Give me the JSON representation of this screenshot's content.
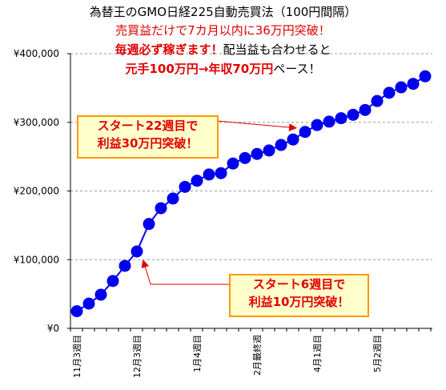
{
  "titles": {
    "line1": "為替王のGMO日経225自動売買法（100円間隔）",
    "line2": "売買益だけで7カ月以内に36万円突破！",
    "line3_emphasis": "毎週必ず稼ぎます！",
    "line3_rest": "配当益も合わせると",
    "line4_emphasis": "元手100万円→年収70万円",
    "line4_rest": "ペース！"
  },
  "callouts": {
    "upper_line1": "スタート22週目で",
    "upper_line2": "利益30万円突破！",
    "lower_line1": "スタート6週目で",
    "lower_line2": "利益10万円突破！"
  },
  "colors": {
    "series": "#0000ee",
    "emphasis": "#e00000",
    "callout_fill": "#ffffcc",
    "callout_border": "#ff9900",
    "grid": "#999999"
  },
  "chart_data": {
    "type": "line",
    "ylim": [
      0,
      400000
    ],
    "yticks": [
      "¥0",
      "¥100,000",
      "¥200,000",
      "¥300,000",
      "¥400,000"
    ],
    "grid": "horizontal dashed",
    "legend": "none",
    "x_tick_labels": [
      {
        "index": 0,
        "label": "11月3週目"
      },
      {
        "index": 5,
        "label": "12月3週目"
      },
      {
        "index": 10,
        "label": "1月4週目"
      },
      {
        "index": 15,
        "label": "2月最終週"
      },
      {
        "index": 20,
        "label": "4月1週目"
      },
      {
        "index": 25,
        "label": "5月2週目"
      }
    ],
    "series": [
      {
        "values": [
          25000,
          36000,
          49000,
          69000,
          91000,
          112000,
          152000,
          175000,
          189000,
          206000,
          215000,
          224000,
          226000,
          240000,
          248000,
          254000,
          259000,
          267000,
          275000,
          286000,
          296000,
          301000,
          306000,
          311000,
          318000,
          331000,
          343000,
          351000,
          356000,
          367000
        ]
      }
    ]
  }
}
